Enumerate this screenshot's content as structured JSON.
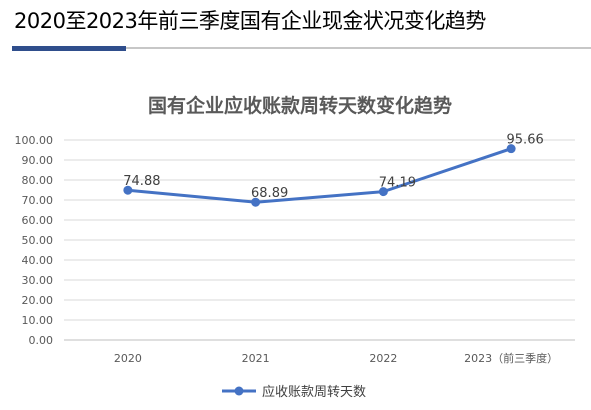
{
  "page": {
    "title": "2020至2023年前三季度国有企业现金状况变化趋势",
    "accent_color": "#2f4e8c",
    "rule_color": "#c7c7c7"
  },
  "chart_data": {
    "type": "line",
    "title": "国有企业应收账款周转天数变化趋势",
    "categories": [
      "2020",
      "2021",
      "2022",
      "2023（前三季度）"
    ],
    "series": [
      {
        "name": "应收账款周转天数",
        "values": [
          74.88,
          68.89,
          74.19,
          95.66
        ],
        "labels": [
          "74.88",
          "68.89",
          "74.19",
          "95.66"
        ],
        "color": "#4472c4"
      }
    ],
    "xlabel": "",
    "ylabel": "",
    "ylim": [
      0,
      100
    ],
    "yticks": [
      0,
      10,
      20,
      30,
      40,
      50,
      60,
      70,
      80,
      90,
      100
    ],
    "ytick_labels": [
      "0.00",
      "10.00",
      "20.00",
      "30.00",
      "40.00",
      "50.00",
      "60.00",
      "70.00",
      "80.00",
      "90.00",
      "100.00"
    ],
    "grid": true,
    "legend": "bottom"
  }
}
